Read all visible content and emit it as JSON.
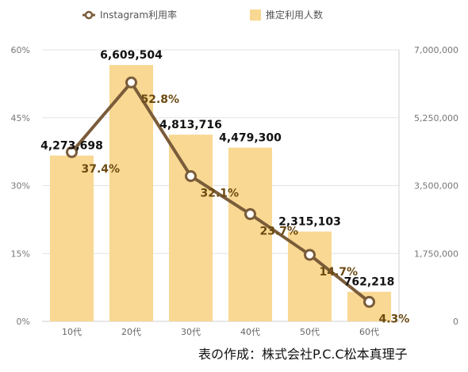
{
  "chart_data": {
    "type": "bar",
    "categories": [
      "10代",
      "20代",
      "30代",
      "40代",
      "50代",
      "60代"
    ],
    "series": [
      {
        "name": "推定利用人数",
        "type": "bar",
        "axis": "right",
        "values": [
          4273698,
          6609504,
          4813716,
          4479300,
          2315103,
          762218
        ],
        "labels": [
          "4,273,698",
          "6,609,504",
          "4,813,716",
          "4,479,300",
          "2,315,103",
          "762,218"
        ]
      },
      {
        "name": "Instagram利用率",
        "type": "line",
        "axis": "left",
        "values": [
          37.4,
          52.8,
          32.1,
          23.7,
          14.7,
          4.3
        ],
        "labels": [
          "37.4%",
          "52.8%",
          "32.1%",
          "23.7%",
          "14.7%",
          "4.3%"
        ]
      }
    ],
    "y_left": {
      "ylim": [
        0,
        60
      ],
      "ticks": [
        "0%",
        "15%",
        "30%",
        "45%",
        "60%"
      ]
    },
    "y_right": {
      "ylim": [
        0,
        7000000
      ],
      "ticks": [
        "0",
        "1,750,000",
        "3,500,000",
        "5,250,000",
        "7,000,000"
      ]
    },
    "grid": true,
    "legend": "top",
    "colors": {
      "bar": "#f8d892",
      "line": "#7a5c3a",
      "marker_fill": "#ffffff"
    }
  },
  "credit": "表の作成：株式会社P.C.C松本真理子"
}
